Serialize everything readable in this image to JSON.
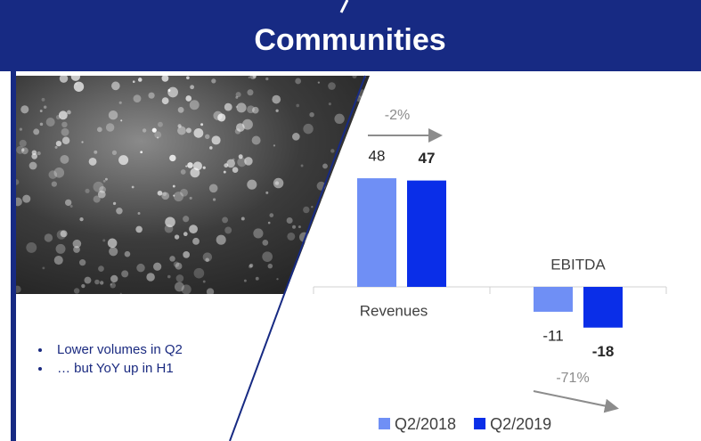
{
  "chart_data": {
    "type": "bar",
    "title": "Communities",
    "categories": [
      "Revenues",
      "EBITDA"
    ],
    "series": [
      {
        "name": "Q2/2018",
        "color": "#6f8ff5",
        "values": [
          48,
          -11
        ]
      },
      {
        "name": "Q2/2019",
        "color": "#0a2ee8",
        "values": [
          47,
          -18
        ]
      }
    ],
    "annotations": [
      "-2%",
      "-71%"
    ],
    "ylim": [
      -20,
      60
    ],
    "legend": "bottom"
  },
  "bullets": [
    "Lower volumes in Q2",
    "… but YoY up in H1"
  ]
}
